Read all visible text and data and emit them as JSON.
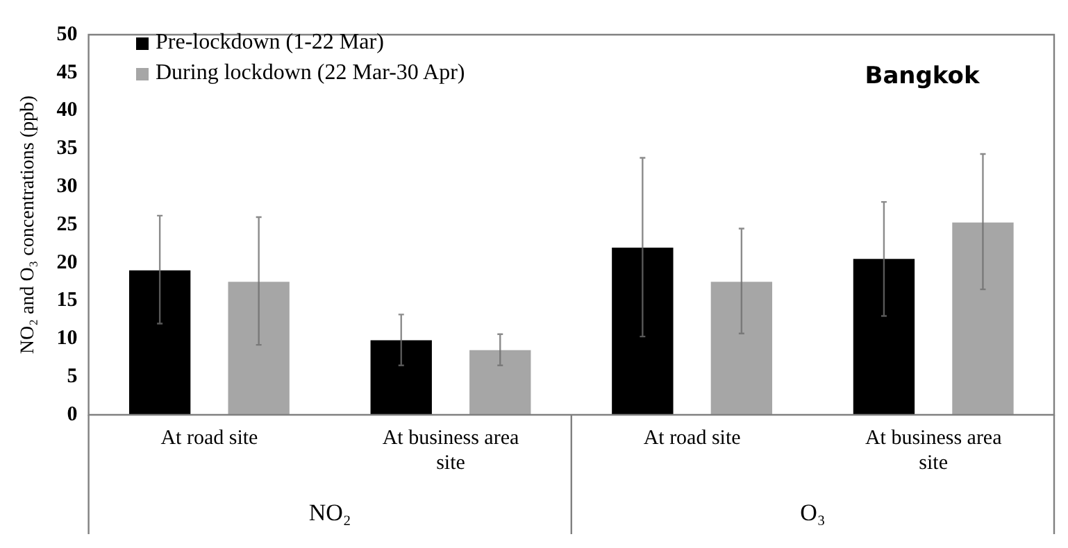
{
  "chart_data": {
    "type": "bar",
    "title": "Bangkok",
    "ylabel": "NO₂ and O₃ concentrations (ppb)",
    "categories": [
      "At road site",
      "At business area site",
      "At road site",
      "At business area site"
    ],
    "series": [
      {
        "name": "Pre-lockdown (1-22 Mar)",
        "color": "#000000",
        "values": [
          19,
          9.8,
          22,
          20.5
        ],
        "errors": [
          [
            12,
            26.2
          ],
          [
            6.5,
            13.2
          ],
          [
            10.3,
            33.8
          ],
          [
            13,
            28
          ]
        ]
      },
      {
        "name": "During lockdown (22 Mar-30 Apr)",
        "color": "#a6a6a6",
        "values": [
          17.5,
          8.5,
          17.5,
          25.3
        ],
        "errors": [
          [
            9.2,
            26
          ],
          [
            6.5,
            10.6
          ],
          [
            10.7,
            24.5
          ],
          [
            16.5,
            34.3
          ]
        ]
      }
    ],
    "annotations": [
      "NO₂",
      "O₃"
    ],
    "ylim": [
      0,
      50
    ],
    "yticks": [
      0,
      5,
      10,
      15,
      20,
      25,
      30,
      35,
      40,
      45,
      50
    ],
    "grid": false,
    "legend": "top left"
  }
}
